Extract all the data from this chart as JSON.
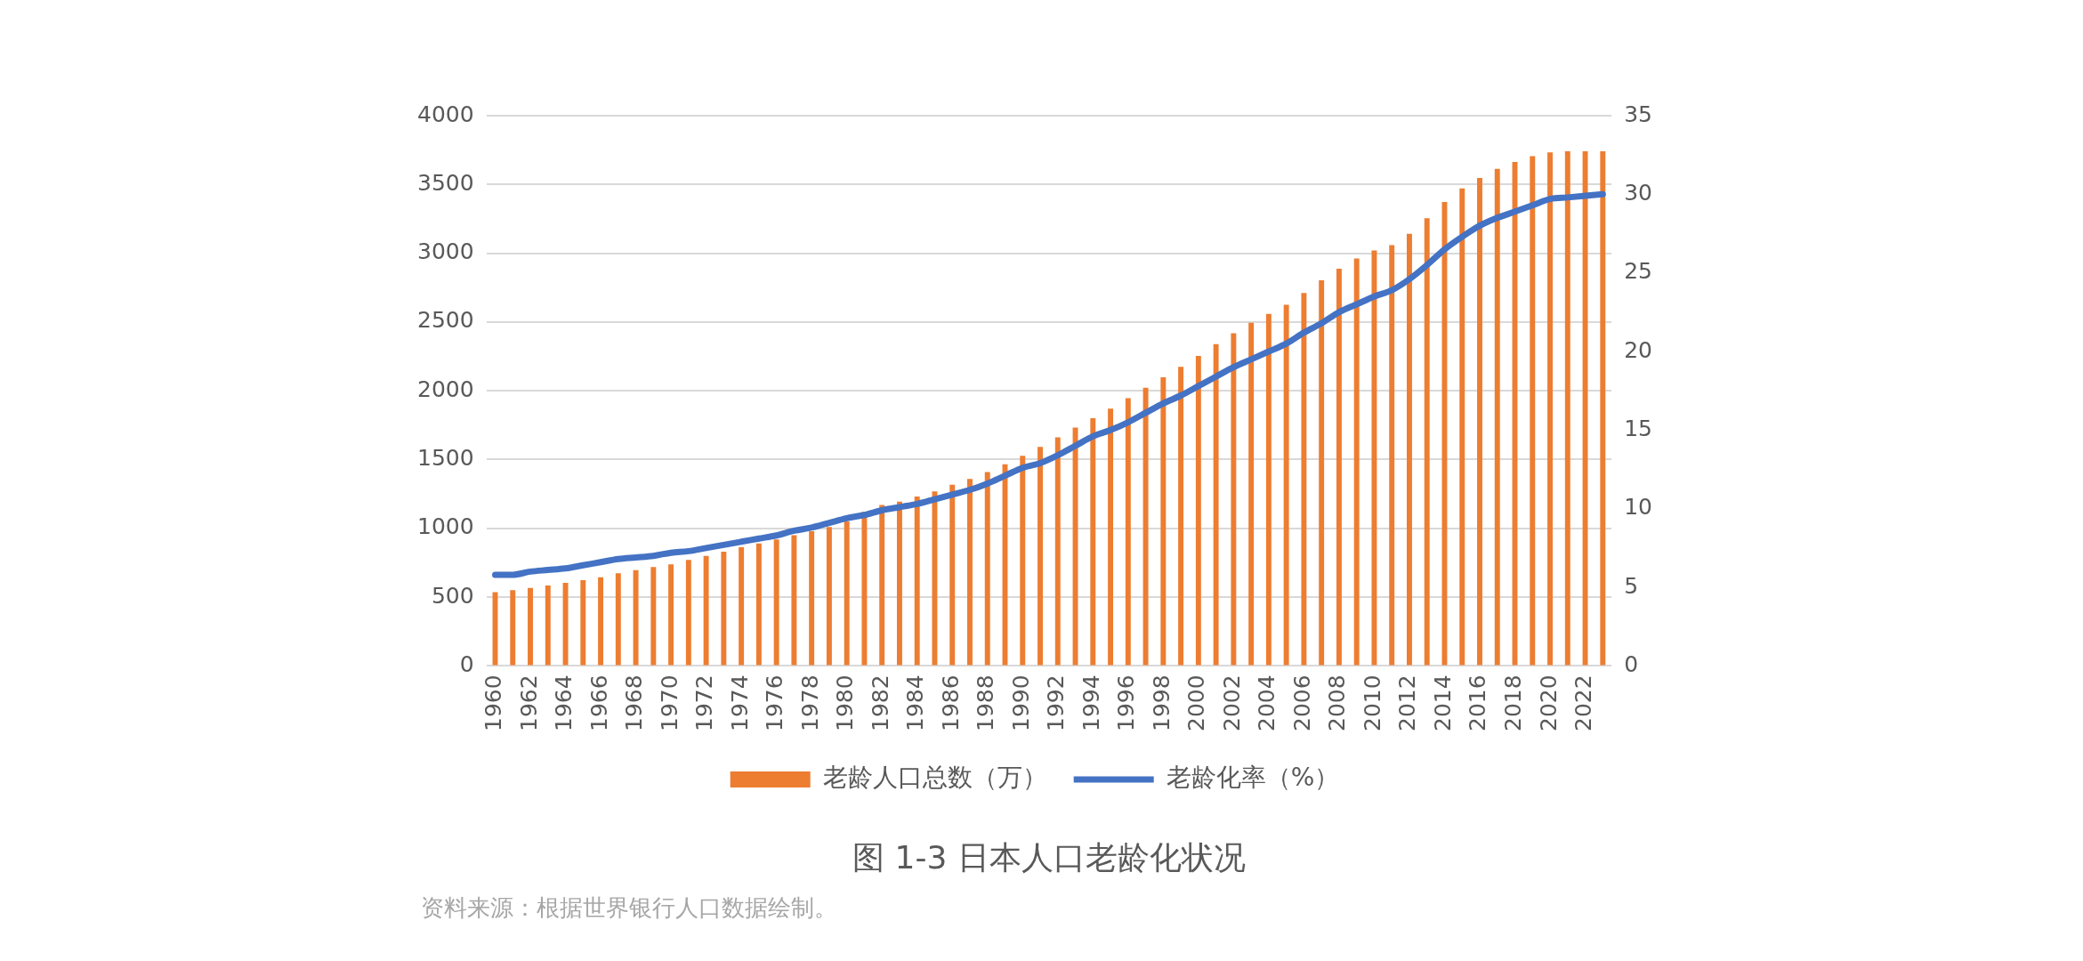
{
  "chart_data": {
    "type": "bar",
    "title": "图 1-3 日本人口老龄化状况",
    "categories": [
      "1960",
      null,
      "1962",
      null,
      "1964",
      null,
      "1966",
      null,
      "1968",
      null,
      "1970",
      null,
      "1972",
      null,
      "1974",
      null,
      "1976",
      null,
      "1978",
      null,
      "1980",
      null,
      "1982",
      null,
      "1984",
      null,
      "1986",
      null,
      "1988",
      null,
      "1990",
      null,
      "1992",
      null,
      "1994",
      null,
      "1996",
      null,
      "1998",
      null,
      "2000",
      null,
      "2002",
      null,
      "2004",
      null,
      "2006",
      null,
      "2008",
      null,
      "2010",
      null,
      "2012",
      null,
      "2014",
      null,
      "2016",
      null,
      "2018",
      null,
      "2020",
      null,
      "2022",
      null
    ],
    "series": [
      {
        "name": "老龄人口总数（万）",
        "color": "#ed7d31",
        "values": [
          536,
          550,
          567,
          584,
          604,
          624,
          644,
          673,
          696,
          719,
          739,
          770,
          799,
          831,
          862,
          891,
          919,
          950,
          980,
          1010,
          1050,
          1120,
          1170,
          1195,
          1231,
          1269,
          1317,
          1360,
          1409,
          1466,
          1527,
          1592,
          1662,
          1732,
          1800,
          1870,
          1946,
          2022,
          2098,
          2175,
          2254,
          2339,
          2419,
          2495,
          2559,
          2626,
          2711,
          2803,
          2888,
          2962,
          3020,
          3059,
          3141,
          3254,
          3373,
          3471,
          3547,
          3614,
          3663,
          3706,
          3733,
          3742,
          3742,
          3742
        ]
      },
      {
        "name": "老龄化率（%）",
        "type": "line",
        "axis": "y2",
        "color": "#4472c4",
        "values": [
          5.8,
          5.8,
          6.0,
          6.1,
          6.2,
          6.4,
          6.6,
          6.8,
          6.9,
          7.0,
          7.2,
          7.3,
          7.5,
          7.7,
          7.9,
          8.1,
          8.3,
          8.6,
          8.8,
          9.1,
          9.4,
          9.6,
          9.9,
          10.1,
          10.3,
          10.6,
          10.9,
          11.2,
          11.6,
          12.1,
          12.6,
          12.9,
          13.4,
          14.0,
          14.6,
          15.0,
          15.5,
          16.1,
          16.7,
          17.2,
          17.8,
          18.4,
          19.0,
          19.5,
          20.0,
          20.5,
          21.2,
          21.8,
          22.5,
          23.0,
          23.5,
          23.9,
          24.6,
          25.5,
          26.5,
          27.3,
          28.0,
          28.5,
          28.9,
          29.3,
          29.7,
          29.8,
          29.9,
          30.0
        ]
      }
    ],
    "ylim": [
      0,
      4000
    ],
    "yticks": [
      0,
      500,
      1000,
      1500,
      2000,
      2500,
      3000,
      3500,
      4000
    ],
    "y2lim": [
      0,
      35
    ],
    "y2ticks": [
      0,
      5,
      10,
      15,
      20,
      25,
      30,
      35
    ],
    "grid": "y",
    "legend": "bottom",
    "marker": "none",
    "line_style": "solid",
    "annotations": [
      "资料来源：根据世界银行人口数据绘制。"
    ]
  }
}
